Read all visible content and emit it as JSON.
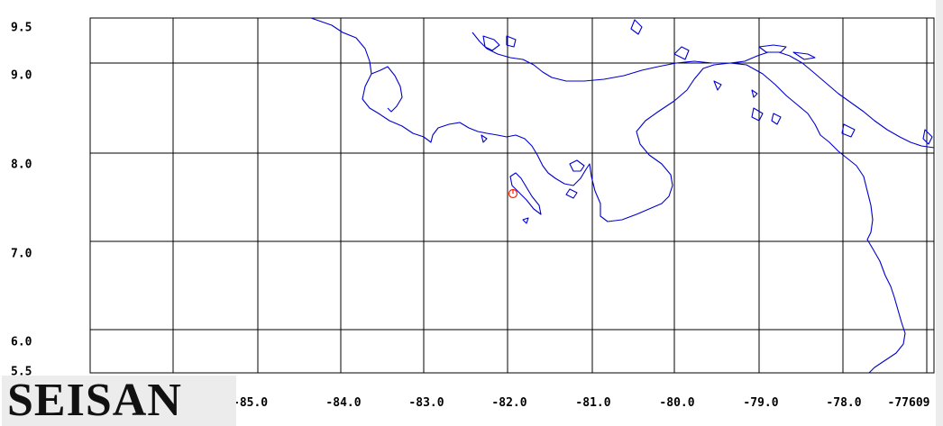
{
  "app": {
    "logo_text": "SEISAN"
  },
  "map": {
    "latitude_labels": [
      "9.5",
      "9.0",
      "8.0",
      "7.0",
      "6.0",
      "5.5"
    ],
    "longitude_labels": [
      "-85.0",
      "-84.0",
      "-83.0",
      "-82.0",
      "-81.0",
      "-80.0",
      "-79.0",
      "-78.0",
      "-77.0",
      "-77609"
    ],
    "coastline_color": "#0000cc",
    "grid_color": "#000000",
    "event_marker": {
      "color": "#ff2200",
      "longitude": -81.9,
      "latitude": 7.55
    }
  }
}
